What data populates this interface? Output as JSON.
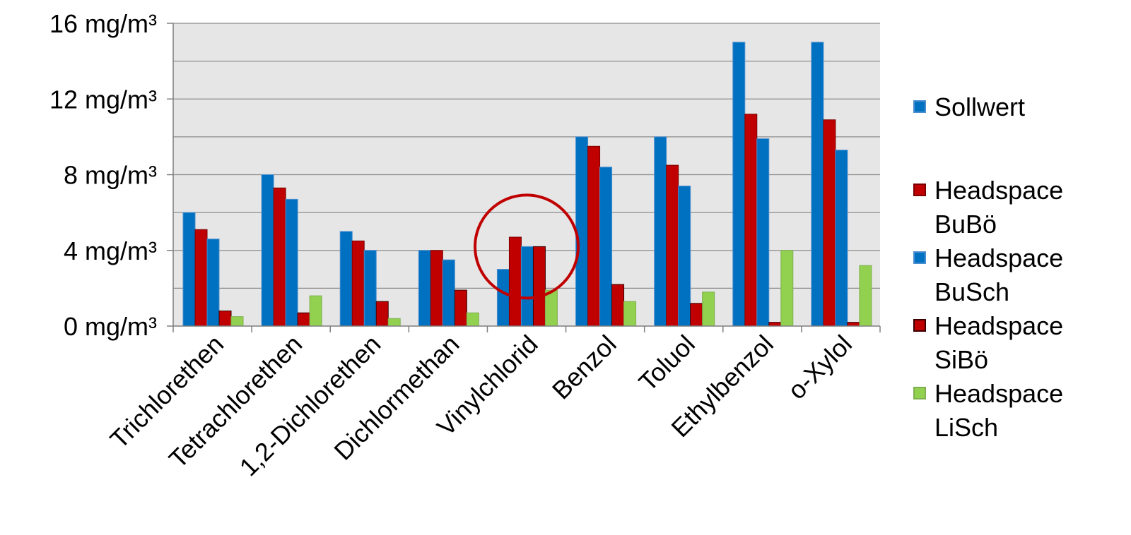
{
  "chart_data": {
    "type": "bar",
    "categories": [
      "Trichlorethen",
      "Tetrachlorethen",
      "1,2-Dichlorethen",
      "Dichlormethan",
      "Vinylchlorid",
      "Benzol",
      "Toluol",
      "Ethylbenzol",
      "o-Xylol"
    ],
    "series": [
      {
        "name": [
          "Sollwert"
        ],
        "color": "#0070c0",
        "border": "#4a8fd0",
        "values": [
          6,
          8,
          5,
          4,
          3,
          10,
          10,
          15,
          15
        ]
      },
      {
        "name": [
          "Headspace",
          "BuBö"
        ],
        "color": "#c00000",
        "border": "#7a0000",
        "values": [
          5.1,
          7.3,
          4.5,
          4.0,
          4.7,
          9.5,
          8.5,
          11.2,
          10.9
        ]
      },
      {
        "name": [
          "Headspace",
          "BuSch"
        ],
        "color": "#0070c0",
        "border": "#4a8fd0",
        "values": [
          4.6,
          6.7,
          4.0,
          3.5,
          4.2,
          8.4,
          7.4,
          9.9,
          9.3
        ]
      },
      {
        "name": [
          "Headspace",
          "SiBö"
        ],
        "color": "#c00000",
        "border": "#3a0000",
        "values": [
          0.8,
          0.7,
          1.3,
          1.9,
          4.2,
          2.2,
          1.2,
          0.2,
          0.2
        ]
      },
      {
        "name": [
          "Headspace",
          "LiSch"
        ],
        "color": "#92d050",
        "border": "#7fb050",
        "values": [
          0.5,
          1.6,
          0.4,
          0.7,
          1.9,
          1.3,
          1.8,
          4.0,
          3.2
        ]
      }
    ],
    "yticks": [
      "0 mg/m³",
      "4 mg/m³",
      "8 mg/m³",
      "12 mg/m³",
      "16 mg/m³"
    ],
    "ylim": [
      0,
      16
    ],
    "grid": true,
    "gridline_step": 2,
    "plot_background": "#e6e6e6",
    "legend_position": "right",
    "annotation": {
      "shape": "circle",
      "color": "#c00000",
      "target": "Vinylchlorid"
    }
  }
}
